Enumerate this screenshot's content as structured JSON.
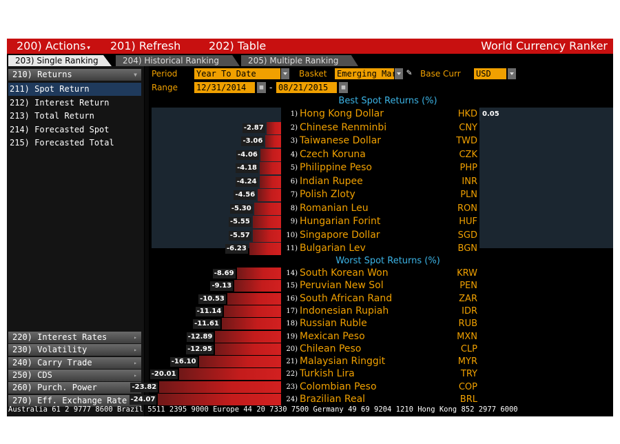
{
  "toolbar": {
    "actions": "200) Actions",
    "refresh": "201) Refresh",
    "table": "202) Table",
    "title": "World Currency Ranker"
  },
  "tabs": [
    {
      "label": "203) Single Ranking",
      "active": true
    },
    {
      "label": "204) Historical Ranking",
      "active": false
    },
    {
      "label": "205) Multiple Ranking",
      "active": false
    }
  ],
  "sidebar": {
    "returns_header": "210) Returns",
    "items": [
      {
        "label": "211) Spot Return",
        "selected": true
      },
      {
        "label": "212) Interest Return",
        "selected": false
      },
      {
        "label": "213) Total Return",
        "selected": false
      },
      {
        "label": "214) Forecasted Spot",
        "selected": false
      },
      {
        "label": "215) Forecasted Total",
        "selected": false
      }
    ],
    "groups": [
      "220) Interest Rates",
      "230) Volatility",
      "240) Carry Trade",
      "250) CDS",
      "260) Purch. Power",
      "270) Eff. Exchange Rate"
    ]
  },
  "controls": {
    "period_label": "Period",
    "period_value": "Year To Date",
    "basket_label": "Basket",
    "basket_value": "Emerging Mar",
    "basecurr_label": "Base Curr",
    "basecurr_value": "USD",
    "range_label": "Range",
    "range_start": "12/31/2014",
    "range_sep": "-",
    "range_end": "08/21/2015"
  },
  "chart_data": {
    "type": "bar",
    "title": "",
    "sections": [
      {
        "title": "Best Spot Returns (%)",
        "rows": [
          {
            "rank": "1)",
            "name": "Hong Kong Dollar",
            "code": "HKD",
            "value": 0.05
          },
          {
            "rank": "2)",
            "name": "Chinese Renminbi",
            "code": "CNY",
            "value": -2.87
          },
          {
            "rank": "3)",
            "name": "Taiwanese Dollar",
            "code": "TWD",
            "value": -3.06
          },
          {
            "rank": "4)",
            "name": "Czech Koruna",
            "code": "CZK",
            "value": -4.06
          },
          {
            "rank": "5)",
            "name": "Philippine Peso",
            "code": "PHP",
            "value": -4.18
          },
          {
            "rank": "6)",
            "name": "Indian Rupee",
            "code": "INR",
            "value": -4.24
          },
          {
            "rank": "7)",
            "name": "Polish Zloty",
            "code": "PLN",
            "value": -4.56
          },
          {
            "rank": "8)",
            "name": "Romanian Leu",
            "code": "RON",
            "value": -5.3
          },
          {
            "rank": "9)",
            "name": "Hungarian Forint",
            "code": "HUF",
            "value": -5.55
          },
          {
            "rank": "10)",
            "name": "Singapore Dollar",
            "code": "SGD",
            "value": -5.57
          },
          {
            "rank": "11)",
            "name": "Bulgarian Lev",
            "code": "BGN",
            "value": -6.23
          }
        ]
      },
      {
        "title": "Worst Spot Returns (%)",
        "rows": [
          {
            "rank": "14)",
            "name": "South Korean Won",
            "code": "KRW",
            "value": -8.69
          },
          {
            "rank": "15)",
            "name": "Peruvian New Sol",
            "code": "PEN",
            "value": -9.13
          },
          {
            "rank": "16)",
            "name": "South African Rand",
            "code": "ZAR",
            "value": -10.53
          },
          {
            "rank": "17)",
            "name": "Indonesian Rupiah",
            "code": "IDR",
            "value": -11.14
          },
          {
            "rank": "18)",
            "name": "Russian Ruble",
            "code": "RUB",
            "value": -11.61
          },
          {
            "rank": "19)",
            "name": "Mexican Peso",
            "code": "MXN",
            "value": -12.89
          },
          {
            "rank": "20)",
            "name": "Chilean Peso",
            "code": "CLP",
            "value": -12.95
          },
          {
            "rank": "21)",
            "name": "Malaysian Ringgit",
            "code": "MYR",
            "value": -16.1
          },
          {
            "rank": "22)",
            "name": "Turkish Lira",
            "code": "TRY",
            "value": -20.01
          },
          {
            "rank": "23)",
            "name": "Colombian Peso",
            "code": "COP",
            "value": -23.82
          },
          {
            "rank": "24)",
            "name": "Brazilian Real",
            "code": "BRL",
            "value": -24.07
          }
        ]
      }
    ],
    "colors": {
      "negative": "#c41c1c",
      "positive_bg": "#1b2630",
      "label": "#f0a000",
      "header": "#3cb4e6"
    }
  },
  "footer": "Australia 61 2 9777 8600 Brazil 5511 2395 9000 Europe 44 20 7330 7500 Germany 49 69 9204 1210 Hong Kong 852 2977 6000",
  "colors": {
    "toolbar": "#c81010",
    "accent": "#f0a000",
    "selection": "#1f3a5c"
  }
}
